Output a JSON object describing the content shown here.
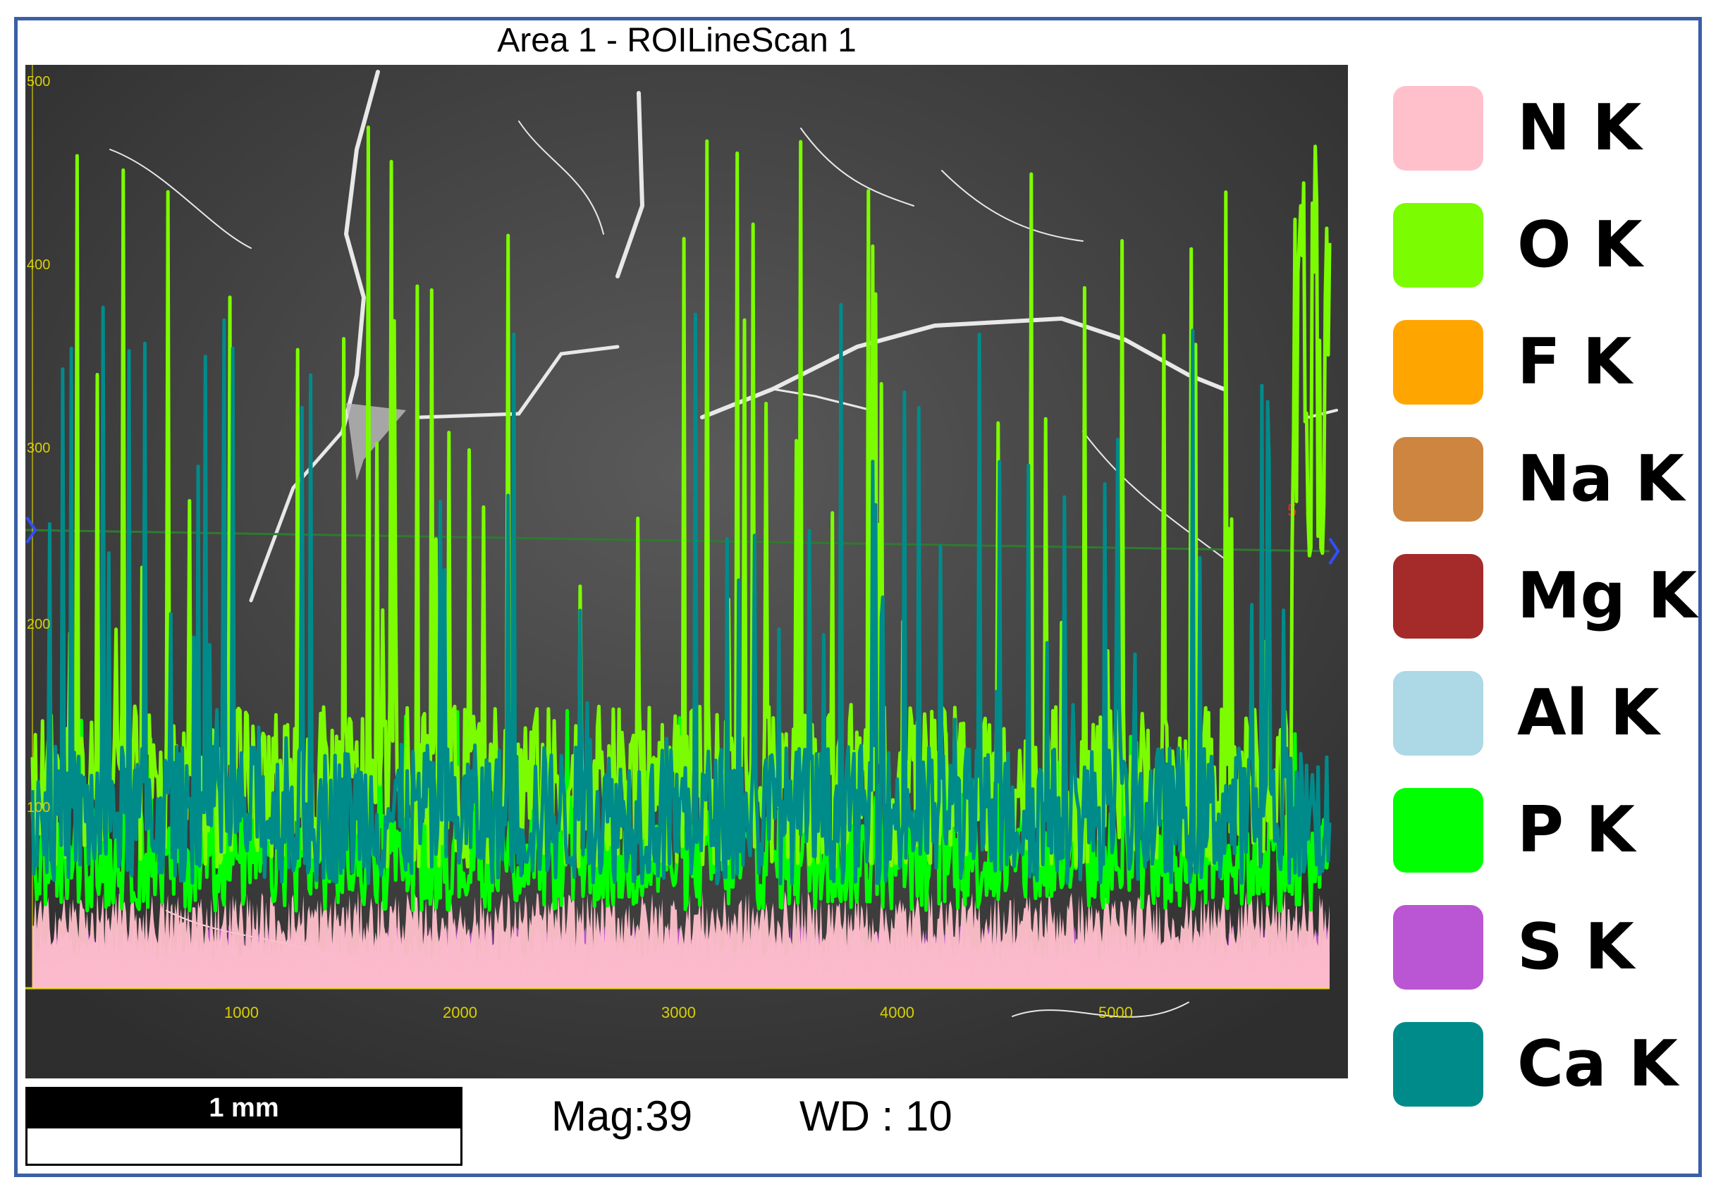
{
  "title": "Area 1 - ROILineScan 1",
  "scale_bar": {
    "label": "1 mm"
  },
  "info": {
    "mag": "Mag:39",
    "wd": "WD : 10"
  },
  "axes": {
    "x_ticks": [
      "1000",
      "2000",
      "3000",
      "4000",
      "5000"
    ],
    "y_ticks": [
      "500",
      "400",
      "300",
      "200",
      "100"
    ],
    "marker": "5"
  },
  "legend": [
    {
      "label": "N K",
      "color": "#ffc0cb"
    },
    {
      "label": "O K",
      "color": "#7cfc00"
    },
    {
      "label": "F K",
      "color": "#ffa500"
    },
    {
      "label": "Na K",
      "color": "#cd853f"
    },
    {
      "label": "Mg K",
      "color": "#a52a2a"
    },
    {
      "label": "Al K",
      "color": "#add8e6"
    },
    {
      "label": "P K",
      "color": "#00ff00"
    },
    {
      "label": "S K",
      "color": "#ba55d3"
    },
    {
      "label": "Ca K",
      "color": "#008b8b"
    }
  ],
  "chart_data": {
    "type": "line",
    "title": "Area 1 - ROILineScan 1",
    "x_ticks": [
      1000,
      2000,
      3000,
      4000,
      5000
    ],
    "y_ticks": [
      100,
      200,
      300,
      400,
      500
    ],
    "xlim": [
      0,
      6000
    ],
    "ylim": [
      0,
      500
    ],
    "legend_placement": "right",
    "series": [
      {
        "name": "N K",
        "color": "#ffc0cb",
        "approx_level": 38
      },
      {
        "name": "O K",
        "color": "#7cfc00",
        "approx_level": 110,
        "peak_max": 470
      },
      {
        "name": "F K",
        "color": "#ffa500",
        "approx_level": 3
      },
      {
        "name": "Na K",
        "color": "#cd853f",
        "approx_level": 8
      },
      {
        "name": "Mg K",
        "color": "#a52a2a",
        "approx_level": 6
      },
      {
        "name": "Al K",
        "color": "#add8e6",
        "approx_level": 10
      },
      {
        "name": "P K",
        "color": "#00ff00",
        "approx_level": 70
      },
      {
        "name": "S K",
        "color": "#ba55d3",
        "approx_level": 25
      },
      {
        "name": "Ca K",
        "color": "#008b8b",
        "approx_level": 95,
        "peak_max": 375
      }
    ]
  }
}
